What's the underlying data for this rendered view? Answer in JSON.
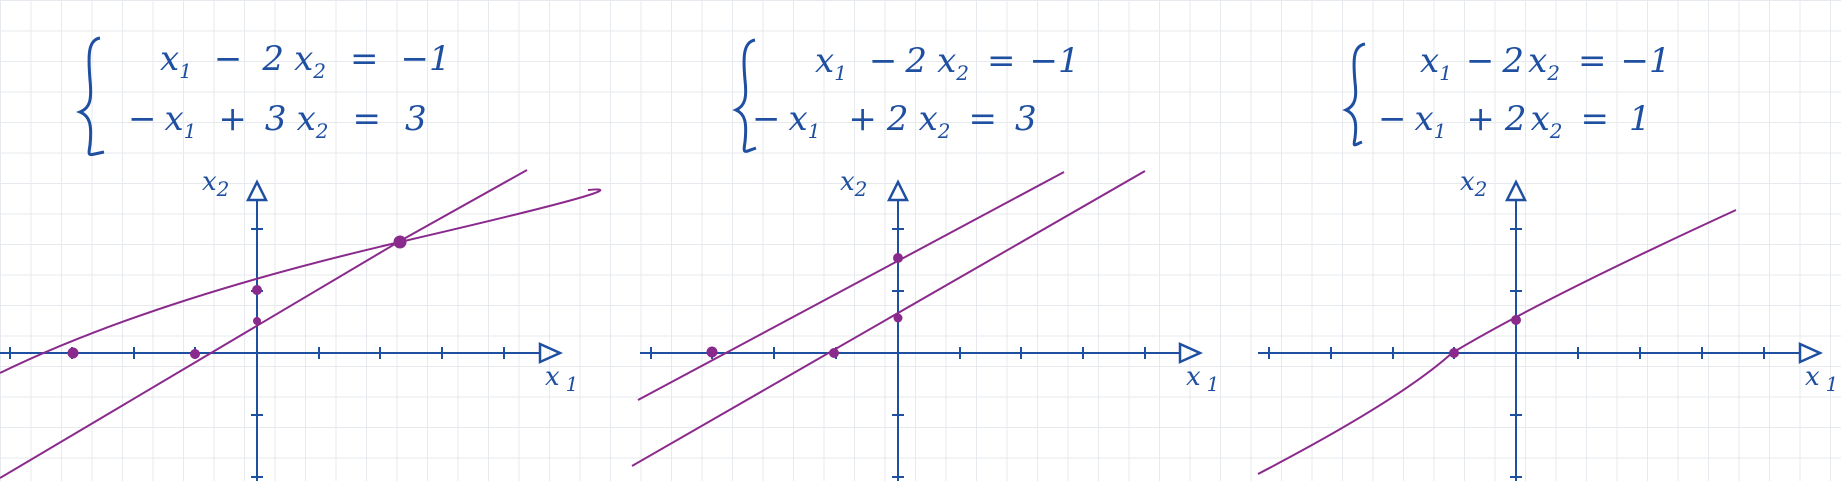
{
  "panels": [
    {
      "system": {
        "eq1": {
          "x1_coef": "",
          "x1_var": "x",
          "x1_sub": "1",
          "op": "−",
          "x2_coef": "2",
          "x2_var": "x",
          "x2_sub": "2",
          "eq": "=",
          "rhs": "−1"
        },
        "eq2": {
          "x1_coef": "−",
          "x1_var": "x",
          "x1_sub": "1",
          "op": "+",
          "x2_coef": "3",
          "x2_var": "x",
          "x2_sub": "2",
          "eq": "=",
          "rhs": "3"
        }
      },
      "axes": {
        "y_label_var": "x",
        "y_label_sub": "2",
        "x_label_var": "x",
        "x_label_sub": "1"
      }
    },
    {
      "system": {
        "eq1": {
          "x1_coef": "",
          "x1_var": "x",
          "x1_sub": "1",
          "op": "−",
          "x2_coef": "2",
          "x2_var": "x",
          "x2_sub": "2",
          "eq": "=",
          "rhs": "−1"
        },
        "eq2": {
          "x1_coef": "−",
          "x1_var": "x",
          "x1_sub": "1",
          "op": "+",
          "x2_coef": "2",
          "x2_var": "x",
          "x2_sub": "2",
          "eq": "=",
          "rhs": "3"
        }
      },
      "axes": {
        "y_label_var": "x",
        "y_label_sub": "2",
        "x_label_var": "x",
        "x_label_sub": "1"
      }
    },
    {
      "system": {
        "eq1": {
          "x1_coef": "",
          "x1_var": "x",
          "x1_sub": "1",
          "op": "−",
          "x2_coef": "2",
          "x2_var": "x",
          "x2_sub": "2",
          "eq": "=",
          "rhs": "−1"
        },
        "eq2": {
          "x1_coef": "−",
          "x1_var": "x",
          "x1_sub": "1",
          "op": "+",
          "x2_coef": "2",
          "x2_var": "x",
          "x2_sub": "2",
          "eq": "=",
          "rhs": "1"
        }
      },
      "axes": {
        "y_label_var": "x",
        "y_label_sub": "2",
        "x_label_var": "x",
        "x_label_sub": "1"
      }
    }
  ],
  "colors": {
    "axis": "#1f4fa0",
    "line": "#8a2a8c",
    "point": "#8a2a8c",
    "text": "#1f4fa0"
  }
}
